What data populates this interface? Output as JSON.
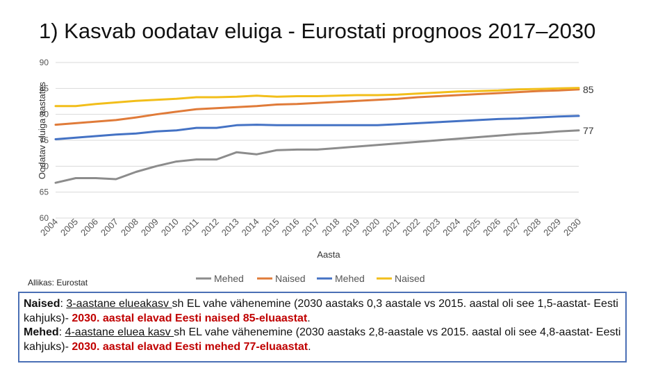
{
  "title": "1) Kasvab oodatav eluiga - Eurostati prognoos 2017–2030",
  "source": "Allikas: Eurostat",
  "chart_data": {
    "type": "line",
    "xlabel": "Aasta",
    "ylabel": "Oodatav eluiga aastates",
    "ylim": [
      60,
      90
    ],
    "yticks": [
      60,
      65,
      70,
      75,
      80,
      85,
      90
    ],
    "categories": [
      "2004",
      "2005",
      "2006",
      "2007",
      "2008",
      "2009",
      "2010",
      "2011",
      "2012",
      "2013",
      "2014",
      "2015",
      "2016",
      "2017",
      "2018",
      "2019",
      "2020",
      "2021",
      "2022",
      "2023",
      "2024",
      "2025",
      "2026",
      "2027",
      "2028",
      "2029",
      "2030"
    ],
    "grid": true,
    "legend_position": "bottom",
    "series": [
      {
        "name": "Mehed",
        "color": "#8c8c8c",
        "values": [
          66.8,
          67.7,
          67.7,
          67.5,
          68.9,
          70.0,
          70.9,
          71.3,
          71.3,
          72.7,
          72.3,
          73.1,
          73.2,
          73.2,
          73.5,
          73.8,
          74.1,
          74.4,
          74.7,
          75.0,
          75.3,
          75.6,
          75.9,
          76.2,
          76.4,
          76.7,
          76.9
        ]
      },
      {
        "name": "Naised",
        "color": "#e07b39",
        "values": [
          78.0,
          78.3,
          78.6,
          78.9,
          79.4,
          80.0,
          80.5,
          81.0,
          81.2,
          81.4,
          81.6,
          81.9,
          82.0,
          82.2,
          82.4,
          82.6,
          82.8,
          83.0,
          83.3,
          83.5,
          83.7,
          83.9,
          84.1,
          84.3,
          84.5,
          84.6,
          84.8
        ]
      },
      {
        "name": "Mehed",
        "color": "#4472c4",
        "values": [
          75.2,
          75.5,
          75.8,
          76.1,
          76.3,
          76.7,
          76.9,
          77.4,
          77.4,
          77.9,
          78.0,
          77.9,
          77.9,
          77.9,
          77.9,
          77.9,
          77.9,
          78.1,
          78.3,
          78.5,
          78.7,
          78.9,
          79.1,
          79.2,
          79.4,
          79.6,
          79.7
        ]
      },
      {
        "name": "Naised",
        "color": "#f2be1a",
        "values": [
          81.6,
          81.6,
          82.0,
          82.3,
          82.6,
          82.8,
          83.0,
          83.3,
          83.3,
          83.4,
          83.6,
          83.4,
          83.5,
          83.5,
          83.6,
          83.7,
          83.7,
          83.8,
          84.0,
          84.2,
          84.4,
          84.5,
          84.6,
          84.8,
          84.9,
          85.0,
          85.1
        ]
      }
    ],
    "annotations": [
      {
        "text": "85",
        "series_index": 1
      },
      {
        "text": "77",
        "series_index": 0
      }
    ]
  },
  "note": {
    "women_label": "Naised",
    "women_p1": ": ",
    "women_u": "3-aastane elueakasv ",
    "women_p2": "sh EL vahe vähenemine (2030 aastaks 0,3 aastale vs 2015. aastal oli see 1,5-aastat- Eesti kahjuks)- ",
    "women_red": "2030. aastal elavad Eesti naised 85-eluaastat",
    "women_end": ".",
    "men_label": "Mehed",
    "men_p1": ": ",
    "men_u": "4-aastane eluea kasv ",
    "men_p2": "sh EL vahe vähenemine (2030 aastaks 2,8-aastale vs 2015. aastal oli see 4,8-aastat- Eesti kahjuks)- ",
    "men_red": "2030. aastal elavad Eesti mehed 77-eluaastat",
    "men_end": "."
  }
}
